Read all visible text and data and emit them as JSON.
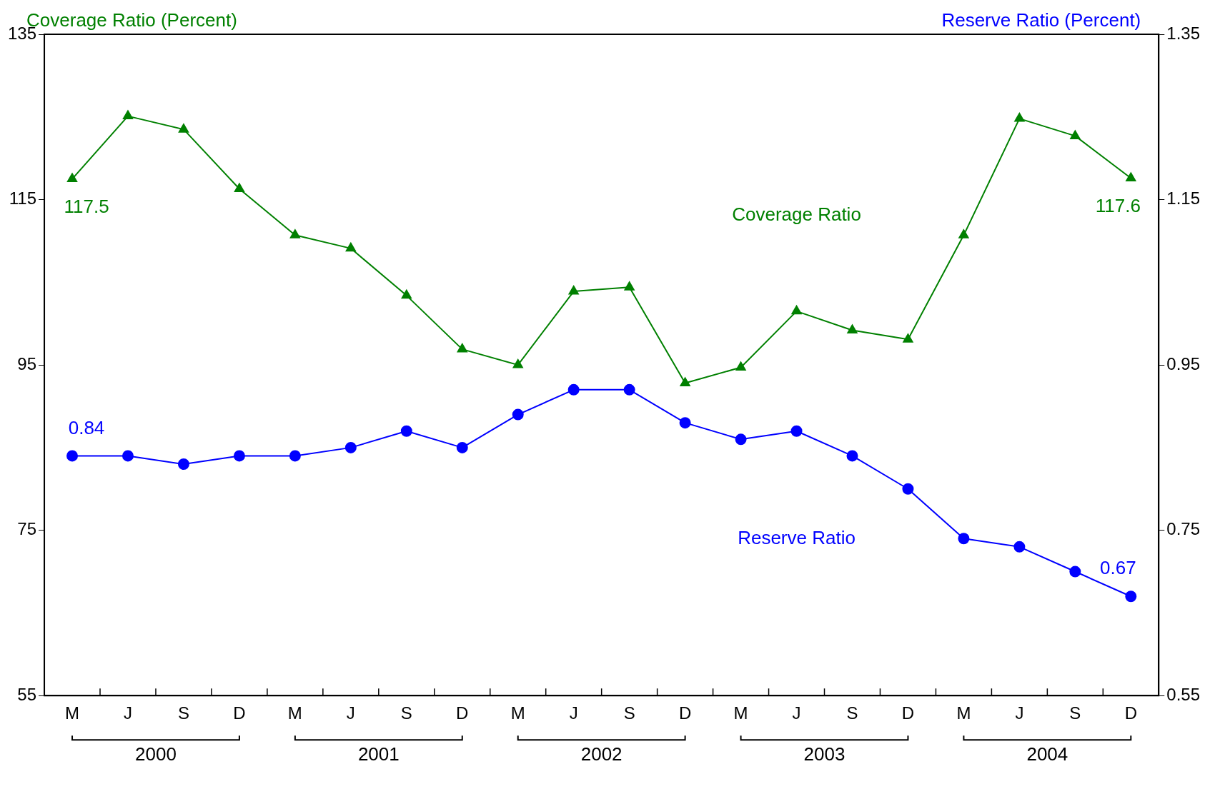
{
  "chart_data": {
    "type": "line",
    "ylabel": "Coverage Ratio (Percent)",
    "y2label": "Reserve Ratio (Percent)",
    "categories": [
      "M",
      "J",
      "S",
      "D",
      "M",
      "J",
      "S",
      "D",
      "M",
      "J",
      "S",
      "D",
      "M",
      "J",
      "S",
      "D",
      "M",
      "J",
      "S",
      "D"
    ],
    "annotations": [
      "2000",
      "2001",
      "2002",
      "2003",
      "2004"
    ],
    "ylim": [
      55,
      135
    ],
    "yticks": [
      55,
      75,
      95,
      115,
      135
    ],
    "y2lim": [
      0.55,
      1.35
    ],
    "y2ticks": [
      0.55,
      0.75,
      0.95,
      1.15,
      1.35
    ],
    "grid": false,
    "series": [
      {
        "name": "Coverage Ratio",
        "color": "#008000",
        "marker": "triangle",
        "values": [
          117.5,
          125.1,
          123.5,
          116.3,
          110.7,
          109.1,
          103.4,
          96.9,
          95.0,
          103.9,
          104.4,
          92.8,
          94.7,
          101.5,
          99.2,
          98.1,
          110.7,
          124.8,
          122.7,
          117.6
        ],
        "value_labels": [
          "117.5",
          null,
          null,
          null,
          null,
          null,
          null,
          null,
          null,
          null,
          null,
          null,
          null,
          null,
          null,
          null,
          null,
          null,
          null,
          "117.6"
        ]
      },
      {
        "name": "Reserve Ratio",
        "color": "#0000ff",
        "marker": "circle",
        "axis": "y2",
        "values": [
          0.84,
          0.84,
          0.83,
          0.84,
          0.84,
          0.85,
          0.87,
          0.85,
          0.89,
          0.92,
          0.92,
          0.88,
          0.86,
          0.87,
          0.84,
          0.8,
          0.74,
          0.73,
          0.7,
          0.67
        ],
        "value_labels": [
          "0.84",
          null,
          null,
          null,
          null,
          null,
          null,
          null,
          null,
          null,
          null,
          null,
          null,
          null,
          null,
          null,
          null,
          null,
          null,
          "0.67"
        ]
      }
    ]
  }
}
